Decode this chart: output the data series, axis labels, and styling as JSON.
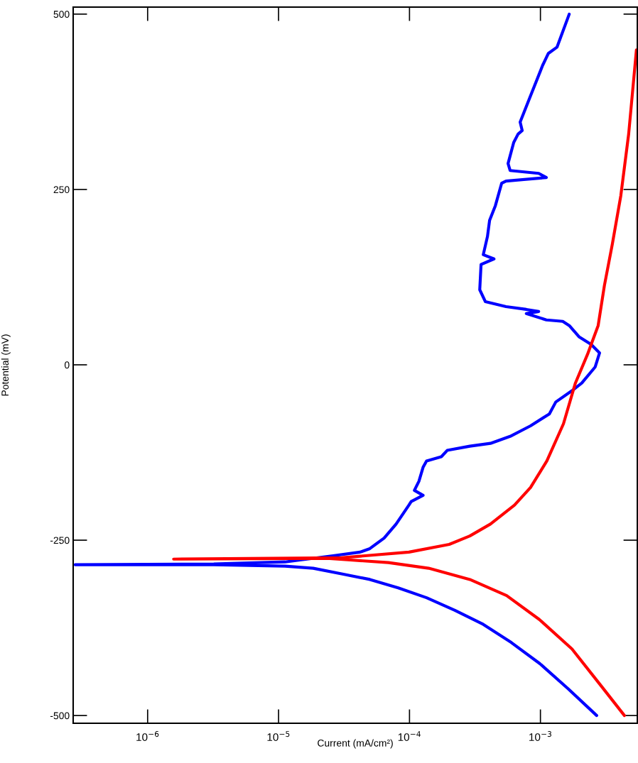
{
  "chart_data": {
    "type": "line",
    "xlabel": "Current (mA/cm²)",
    "ylabel": "Potential (mV)",
    "log": "x",
    "grid": false,
    "marker": "none",
    "line_style": "solid",
    "xlim": [
      2.7e-07,
      0.0055
    ],
    "ylim": [
      -511,
      510
    ],
    "xticks": [
      {
        "value": 1e-06,
        "label": "10$^{−6}$"
      },
      {
        "value": 1e-05,
        "label": "10$^{−5}$"
      },
      {
        "value": 0.0001,
        "label": "10$^{−4}$"
      },
      {
        "value": 0.001,
        "label": "10$^{−3}$"
      }
    ],
    "yticks": [
      500,
      250,
      0,
      -250,
      -500
    ],
    "series": [
      {
        "color": "#0000ff",
        "x": [
          0.00269,
          0.00163,
          0.00099,
          0.0006,
          0.000366,
          0.000222,
          0.000135,
          8.2e-05,
          4.98e-05,
          3.03e-05,
          1.84e-05,
          1.12e-05,
          3.2e-06,
          2.8e-07,
          3.2e-06,
          1.12e-05,
          2.67e-05,
          4.19e-05,
          4.98e-05,
          6.4e-05,
          7.9e-05,
          9.9e-05,
          0.000103,
          0.000127,
          0.000109,
          0.000118,
          0.000127,
          0.000135,
          0.000175,
          0.000194,
          0.000289,
          0.000415,
          0.000587,
          0.00084,
          0.00117,
          0.00131,
          0.00174,
          0.00207,
          0.00262,
          0.00283,
          0.00244,
          0.00197,
          0.00166,
          0.00148,
          0.00111,
          0.00078,
          0.00097,
          0.00078,
          0.000546,
          0.00038,
          0.000344,
          0.000352,
          0.000442,
          0.000366,
          0.000394,
          0.000409,
          0.000453,
          0.000506,
          0.000546,
          0.00111,
          0.00097,
          0.000587,
          0.000566,
          0.000625,
          0.000675,
          0.000726,
          0.0007,
          0.00083,
          0.00104,
          0.00115,
          0.00134,
          0.00166
        ],
        "values": [
          -500,
          -462,
          -426,
          -396,
          -370,
          -350,
          -332,
          -318,
          -306,
          -298,
          -290,
          -287,
          -285,
          -285,
          -284,
          -281,
          -272,
          -267,
          -262,
          -247,
          -227,
          -200,
          -195,
          -186,
          -179,
          -166,
          -146,
          -137,
          -131,
          -122,
          -116,
          -112,
          -102,
          -87,
          -70,
          -53,
          -37,
          -26,
          -3,
          17,
          29,
          40,
          56,
          62,
          64,
          73,
          76,
          79,
          83,
          90,
          107,
          143,
          151,
          157,
          183,
          206,
          227,
          259,
          262,
          267,
          273,
          277,
          287,
          317,
          329,
          334,
          346,
          381,
          427,
          444,
          453,
          500
        ]
      },
      {
        "color": "#ff0000",
        "x": [
          0.00438,
          0.00286,
          0.00174,
          0.00098,
          0.000552,
          0.000289,
          0.00014,
          6.9e-05,
          3.39e-05,
          2.35e-05,
          1.58e-06,
          3.03e-05,
          9.9e-05,
          0.000201,
          0.000289,
          0.000415,
          0.000634,
          0.00084,
          0.00112,
          0.0015,
          0.00185,
          0.00229,
          0.00276,
          0.00308,
          0.00354,
          0.00411,
          0.00472,
          0.00541
        ],
        "values": [
          -500,
          -456,
          -405,
          -363,
          -329,
          -306,
          -290,
          -282,
          -278,
          -276,
          -277,
          -275,
          -267,
          -256,
          -244,
          -227,
          -200,
          -175,
          -137,
          -84,
          -26,
          15,
          56,
          113,
          172,
          241,
          329,
          449
        ]
      }
    ]
  }
}
